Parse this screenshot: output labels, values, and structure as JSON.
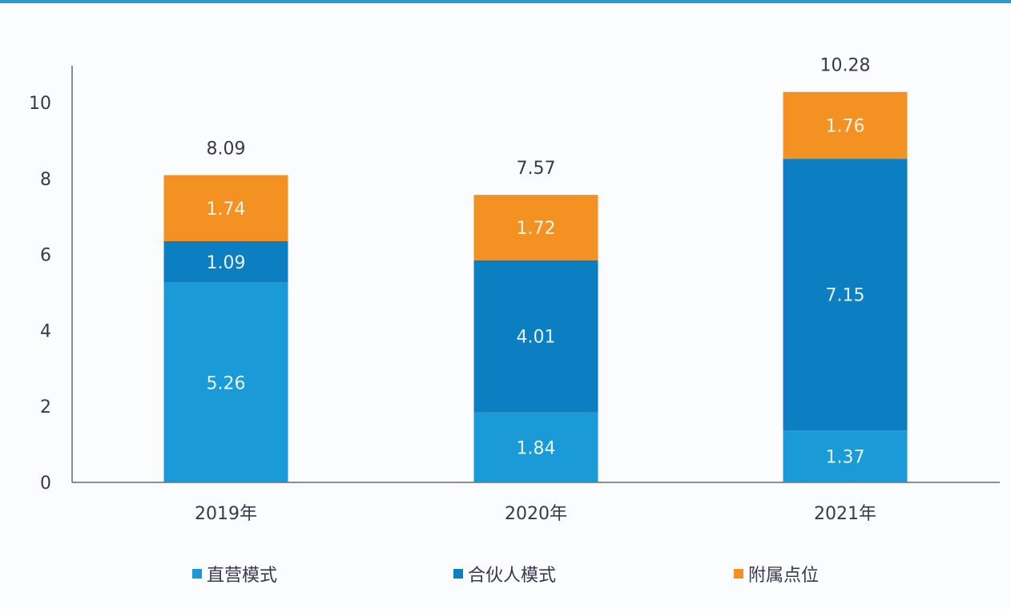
{
  "chart_data": {
    "type": "bar",
    "stacked": true,
    "categories": [
      "2019年",
      "2020年",
      "2021年"
    ],
    "series": [
      {
        "name": "直营模式",
        "values": [
          5.26,
          1.84,
          1.37
        ],
        "color": "#1a9bd7"
      },
      {
        "name": "合伙人模式",
        "values": [
          1.09,
          4.01,
          7.15
        ],
        "color": "#0b7fc1"
      },
      {
        "name": "附属点位",
        "values": [
          1.74,
          1.72,
          1.76
        ],
        "color": "#f39222"
      }
    ],
    "totals": [
      "8.09",
      "7.57",
      "10.28"
    ],
    "yticks": [
      0,
      2,
      4,
      6,
      8,
      10
    ],
    "ylim": [
      0,
      11
    ],
    "grid": false,
    "legend_position": "bottom"
  }
}
